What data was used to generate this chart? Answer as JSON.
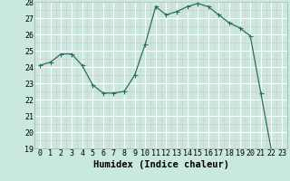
{
  "x": [
    0,
    1,
    2,
    3,
    4,
    5,
    6,
    7,
    8,
    9,
    10,
    11,
    12,
    13,
    14,
    15,
    16,
    17,
    18,
    19,
    20,
    21,
    22,
    23
  ],
  "y": [
    24.1,
    24.3,
    24.8,
    24.8,
    24.1,
    22.9,
    22.4,
    22.4,
    22.5,
    23.5,
    25.4,
    27.7,
    27.2,
    27.4,
    27.7,
    27.9,
    27.7,
    27.2,
    26.7,
    26.4,
    25.9,
    22.4,
    18.9,
    18.8
  ],
  "xlabel": "Humidex (Indice chaleur)",
  "ylim": [
    19,
    28
  ],
  "xlim": [
    -0.5,
    23.5
  ],
  "yticks": [
    19,
    20,
    21,
    22,
    23,
    24,
    25,
    26,
    27,
    28
  ],
  "xticks": [
    0,
    1,
    2,
    3,
    4,
    5,
    6,
    7,
    8,
    9,
    10,
    11,
    12,
    13,
    14,
    15,
    16,
    17,
    18,
    19,
    20,
    21,
    22,
    23
  ],
  "line_color": "#2d6e62",
  "marker_color": "#2d6e62",
  "bg_color": "#c8e8e0",
  "grid_major_color": "#ffffff",
  "grid_minor_color": "#dfc8c8",
  "xlabel_fontsize": 7.5,
  "tick_fontsize": 6,
  "marker_size": 2.0
}
